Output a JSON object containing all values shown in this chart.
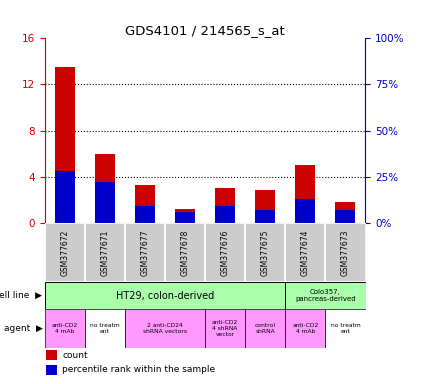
{
  "title": "GDS4101 / 214565_s_at",
  "samples": [
    "GSM377672",
    "GSM377671",
    "GSM377677",
    "GSM377678",
    "GSM377676",
    "GSM377675",
    "GSM377674",
    "GSM377673"
  ],
  "count_values": [
    13.5,
    6.0,
    3.3,
    1.2,
    3.0,
    2.8,
    5.0,
    1.8
  ],
  "percentile_values": [
    28,
    22,
    9,
    6,
    9,
    7,
    13,
    7
  ],
  "ylim_left": [
    0,
    16
  ],
  "ylim_right": [
    0,
    100
  ],
  "yticks_left": [
    0,
    4,
    8,
    12,
    16
  ],
  "yticks_right": [
    0,
    25,
    50,
    75,
    100
  ],
  "ytick_labels_right": [
    "0%",
    "25%",
    "50%",
    "75%",
    "100%"
  ],
  "bar_color_red": "#cc0000",
  "bar_color_blue": "#0000cc",
  "bar_width": 0.5,
  "tick_label_color": "#cc0000",
  "right_axis_color": "#0000cc",
  "legend_count_label": "count",
  "legend_percentile_label": "percentile rank within the sample",
  "agent_groups": [
    {
      "label": "anti-CD2\n4 mAb",
      "start": 0,
      "end": 1,
      "color": "#ff99ff"
    },
    {
      "label": "no treatm\nent",
      "start": 1,
      "end": 2,
      "color": "#ffffff"
    },
    {
      "label": "2 anti-CD24\nshRNA vectors",
      "start": 2,
      "end": 4,
      "color": "#ff99ff"
    },
    {
      "label": "anti-CD2\n4 shRNA\nvector",
      "start": 4,
      "end": 5,
      "color": "#ff99ff"
    },
    {
      "label": "control\nshRNA",
      "start": 5,
      "end": 6,
      "color": "#ff99ff"
    },
    {
      "label": "anti-CD2\n4 mAb",
      "start": 6,
      "end": 7,
      "color": "#ff99ff"
    },
    {
      "label": "no treatm\nent",
      "start": 7,
      "end": 8,
      "color": "#ffffff"
    }
  ]
}
